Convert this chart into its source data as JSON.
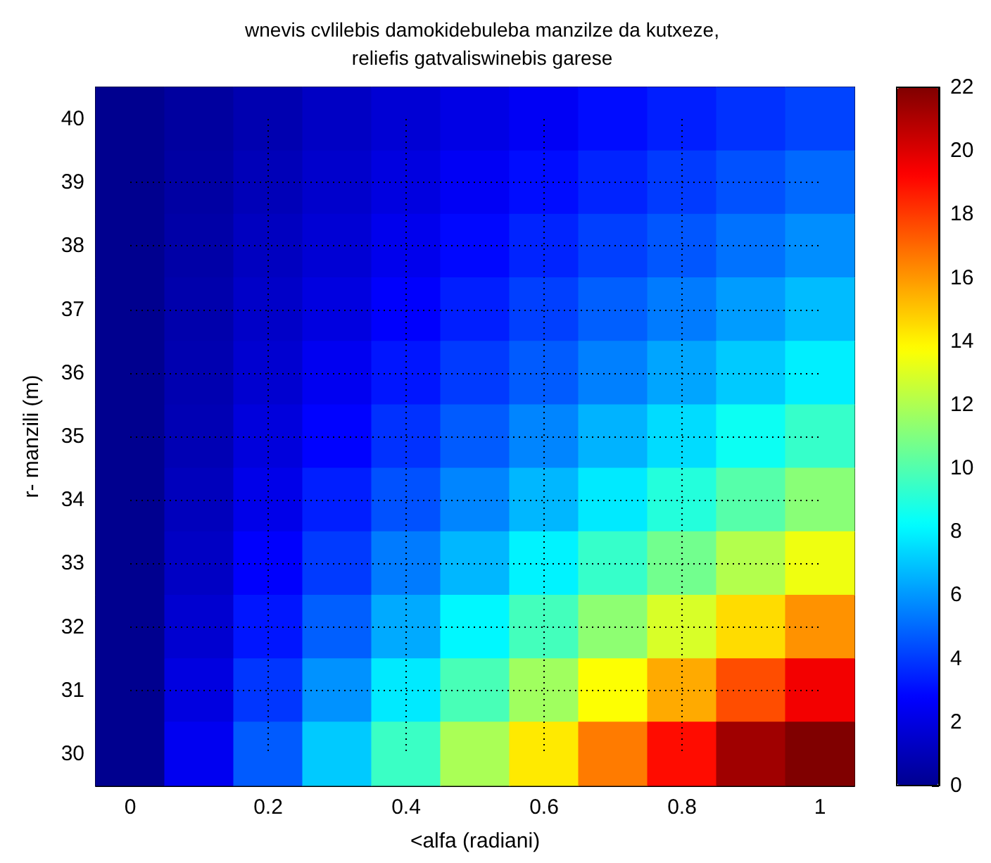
{
  "chart_data": {
    "type": "heatmap",
    "title": "wnevis cvlilebis damokidebuleba manzilze da kutxeze,\nreliefis gatvaliswinebis garese",
    "xlabel": "<alfa (radiani)",
    "ylabel": "r- manzili (m)",
    "categories": [
      "0",
      null,
      "0.2",
      null,
      "0.4",
      null,
      "0.6",
      null,
      "0.8",
      null,
      "1"
    ],
    "y_categories": [
      "40",
      "39",
      "38",
      "37",
      "36",
      "35",
      "34",
      "33",
      "32",
      "31",
      "30"
    ],
    "cells": [
      [
        0,
        0.4,
        0.8,
        1.3,
        1.7,
        2.1,
        2.5,
        3.0,
        3.4,
        3.8,
        4.2
      ],
      [
        0,
        0.5,
        1.0,
        1.5,
        2.0,
        2.5,
        3.0,
        3.5,
        4.0,
        4.5,
        5.0
      ],
      [
        0,
        0.6,
        1.2,
        1.7,
        2.3,
        2.9,
        3.5,
        4.1,
        4.6,
        5.2,
        5.8
      ],
      [
        0,
        0.7,
        1.4,
        2.0,
        2.7,
        3.4,
        4.1,
        4.8,
        5.4,
        6.1,
        6.8
      ],
      [
        0,
        0.8,
        1.6,
        2.4,
        3.2,
        4.0,
        4.7,
        5.5,
        6.3,
        7.1,
        7.9
      ],
      [
        0,
        0.9,
        1.9,
        2.8,
        3.8,
        4.7,
        5.6,
        6.6,
        7.5,
        8.5,
        9.4
      ],
      [
        0,
        1.1,
        2.2,
        3.4,
        4.5,
        5.6,
        6.7,
        7.8,
        9.0,
        10.1,
        11.2
      ],
      [
        0,
        1.3,
        2.7,
        4.0,
        5.4,
        6.7,
        8.0,
        9.4,
        10.7,
        12.1,
        13.4
      ],
      [
        0,
        1.6,
        3.2,
        4.8,
        6.4,
        8.1,
        9.7,
        11.3,
        12.9,
        14.5,
        16.1
      ],
      [
        0,
        2.0,
        3.9,
        5.9,
        7.8,
        9.8,
        11.7,
        13.7,
        15.6,
        17.6,
        19.5
      ],
      [
        0,
        2.4,
        4.7,
        7.1,
        9.5,
        11.9,
        14.2,
        16.6,
        19.0,
        21.3,
        22
      ]
    ],
    "clim": [
      0,
      22
    ],
    "cticks": [
      0,
      2,
      4,
      6,
      8,
      10,
      12,
      14,
      16,
      18,
      20,
      22
    ],
    "grid": true
  }
}
